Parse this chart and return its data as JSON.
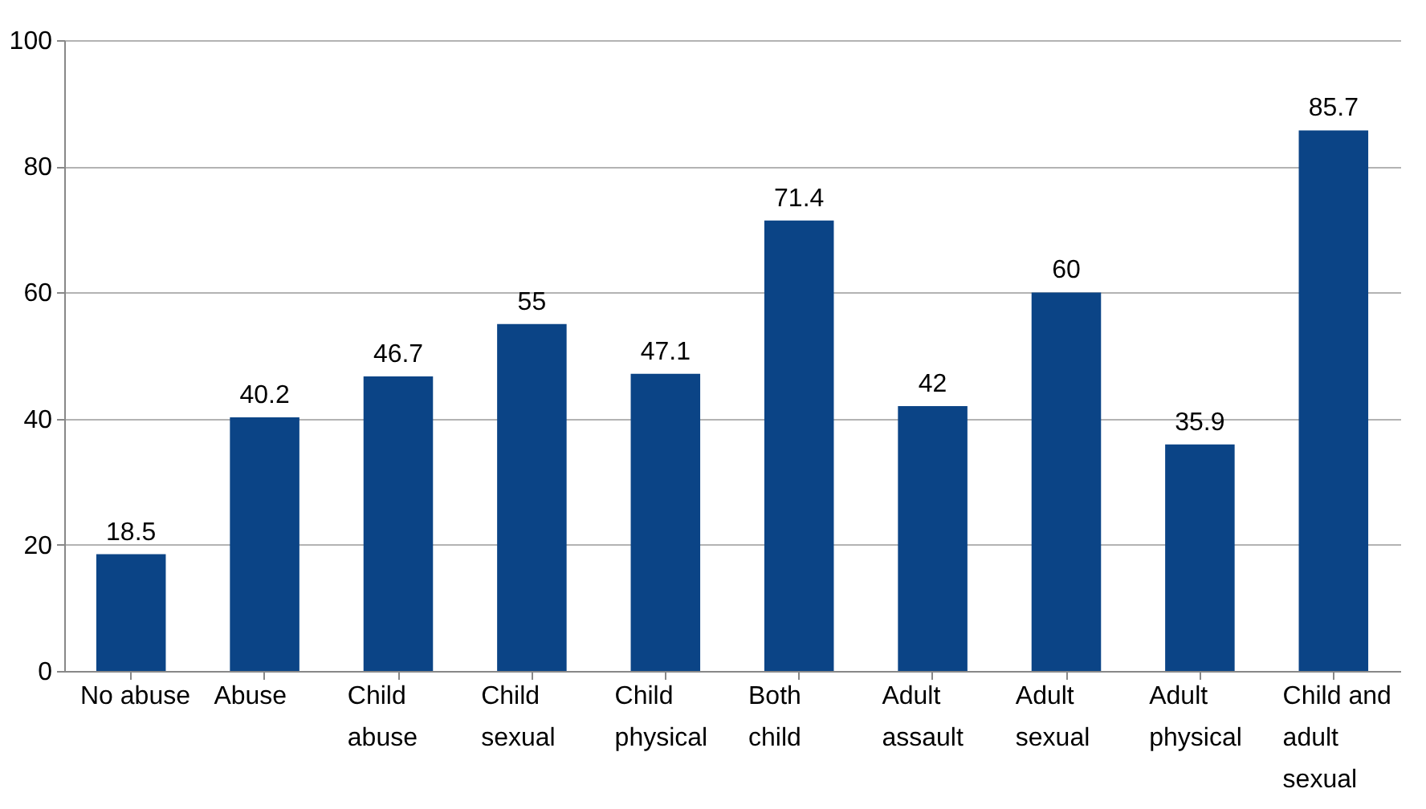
{
  "chart_data": {
    "type": "bar",
    "categories": [
      "No abuse",
      "Abuse",
      "Child\nabuse",
      "Child\nsexual",
      "Child\nphysical",
      "Both\nchild",
      "Adult\nassault",
      "Adult\nsexual",
      "Adult\nphysical",
      "Child and\nadult\nsexual"
    ],
    "values": [
      18.5,
      40.2,
      46.7,
      55,
      47.1,
      71.4,
      42,
      60,
      35.9,
      85.7
    ],
    "color": "#0b4486",
    "ylim": [
      0,
      100
    ],
    "yticks": [
      0,
      20,
      40,
      60,
      80,
      100
    ],
    "grid": "y",
    "data_labels": true
  }
}
